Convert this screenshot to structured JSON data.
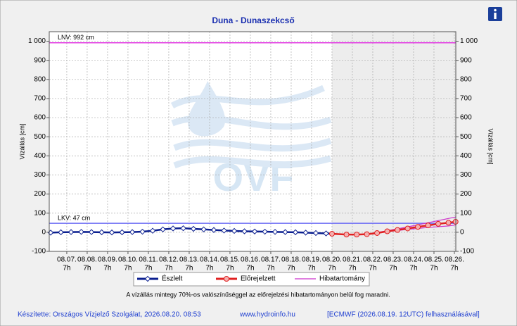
{
  "chart_data": {
    "type": "line",
    "title": "Duna - Dunaszekcső",
    "y_label": "Vízállás [cm]",
    "y2_label": "Vízállás [cm]",
    "watermark": "OVF",
    "xlim": [
      6.43,
      26.36
    ],
    "ylim": [
      -100,
      1050
    ],
    "grid": true,
    "xticks": [
      {
        "value": 7.29,
        "label": "08.07.",
        "time": "7h"
      },
      {
        "value": 8.29,
        "label": "08.08.",
        "time": "7h"
      },
      {
        "value": 9.29,
        "label": "08.09.",
        "time": "7h"
      },
      {
        "value": 10.29,
        "label": "08.10.",
        "time": "7h"
      },
      {
        "value": 11.29,
        "label": "08.11.",
        "time": "7h"
      },
      {
        "value": 12.29,
        "label": "08.12.",
        "time": "7h"
      },
      {
        "value": 13.29,
        "label": "08.13.",
        "time": "7h"
      },
      {
        "value": 14.29,
        "label": "08.14.",
        "time": "7h"
      },
      {
        "value": 15.29,
        "label": "08.15.",
        "time": "7h"
      },
      {
        "value": 16.29,
        "label": "08.16.",
        "time": "7h"
      },
      {
        "value": 17.29,
        "label": "08.17.",
        "time": "7h"
      },
      {
        "value": 18.29,
        "label": "08.18.",
        "time": "7h"
      },
      {
        "value": 19.29,
        "label": "08.19.",
        "time": "7h"
      },
      {
        "value": 20.29,
        "label": "08.20.",
        "time": "7h"
      },
      {
        "value": 21.29,
        "label": "08.21.",
        "time": "7h"
      },
      {
        "value": 22.29,
        "label": "08.22.",
        "time": "7h"
      },
      {
        "value": 23.29,
        "label": "08.23.",
        "time": "7h"
      },
      {
        "value": 24.29,
        "label": "08.24.",
        "time": "7h"
      },
      {
        "value": 25.29,
        "label": "08.25.",
        "time": "7h"
      },
      {
        "value": 26.29,
        "label": "08.26.",
        "time": "7h"
      }
    ],
    "yticks": [
      -100,
      0,
      100,
      200,
      300,
      400,
      500,
      600,
      700,
      800,
      900,
      {
        "value": 1000,
        "label": "1 000"
      }
    ],
    "forecast_start": 20.29,
    "reference_lines": [
      {
        "label": "LNV: 992 cm",
        "value": 992,
        "color": "#e23be2"
      },
      {
        "label": "LKV: 47 cm",
        "value": 47,
        "color": "#6c6cf5"
      }
    ],
    "series": [
      {
        "name": "Észlelt",
        "color": "#0b1f8f",
        "marker": "diamond",
        "x": [
          6.5,
          7,
          7.5,
          8,
          8.5,
          9,
          9.5,
          10,
          10.5,
          11,
          11.5,
          12,
          12.5,
          13,
          13.5,
          14,
          14.5,
          15,
          15.5,
          16,
          16.5,
          17,
          17.5,
          18,
          18.5,
          19,
          19.5,
          20,
          20.29
        ],
        "values": [
          -2,
          0,
          1,
          2,
          1,
          0,
          -1,
          0,
          1,
          3,
          8,
          15,
          20,
          21,
          18,
          15,
          12,
          9,
          7,
          5,
          4,
          3,
          2,
          1,
          0,
          -2,
          -4,
          -6,
          -8
        ]
      },
      {
        "name": "Előrejelzett",
        "color": "#e02020",
        "marker": "circle",
        "x": [
          20.29,
          21,
          21.5,
          22,
          22.5,
          23,
          23.5,
          24,
          24.5,
          25,
          25.5,
          26,
          26.35
        ],
        "values": [
          -8,
          -12,
          -12,
          -10,
          -4,
          5,
          12,
          20,
          28,
          36,
          44,
          50,
          55
        ]
      }
    ],
    "band": {
      "name": "Hibatartomány",
      "color": "#cc33cc",
      "x": [
        22,
        23,
        24,
        25,
        26,
        26.35
      ],
      "upper": [
        -10,
        8,
        28,
        50,
        72,
        80
      ],
      "lower": [
        -10,
        3,
        15,
        25,
        33,
        38
      ]
    },
    "note": "A vízállás mintegy 70%-os valószínűséggel az előrejelzési hibatartományon belül fog maradni.",
    "footer": {
      "author": "Készítette: Országos Vízjelző Szolgálat, 2026.08.20. 08:53",
      "url": "www.hydroinfo.hu",
      "source": "[ECMWF (2026.08.19. 12UTC) felhasználásával]"
    }
  }
}
